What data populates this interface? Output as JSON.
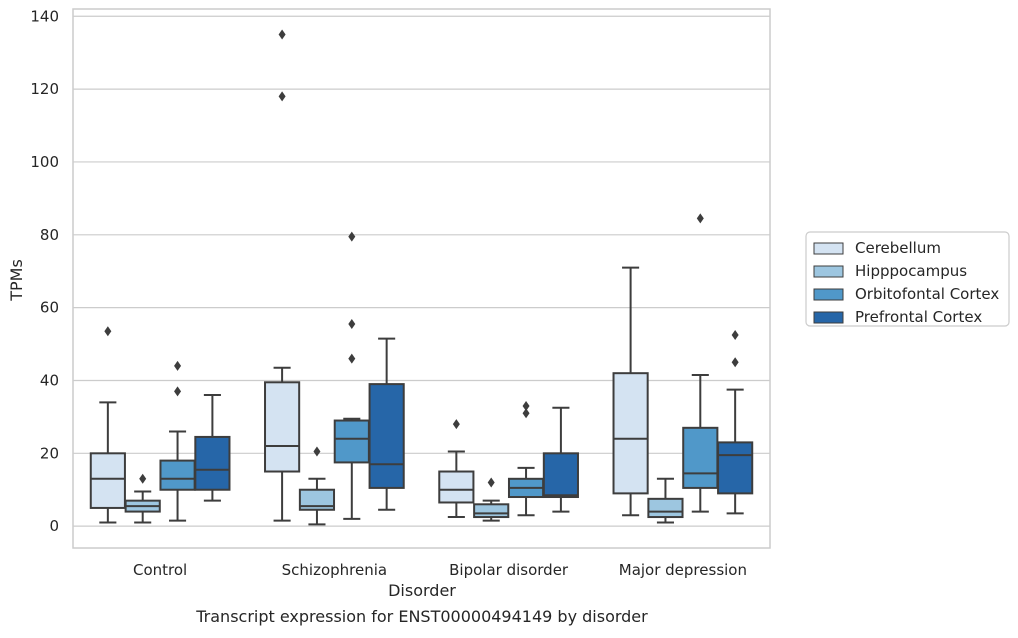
{
  "chart_data": {
    "type": "box",
    "title": "",
    "caption": "Transcript expression for ENST00000494149 by disorder",
    "xlabel": "Disorder",
    "ylabel": "TPMs",
    "ylim": [
      -6,
      142
    ],
    "yticks": [
      0,
      20,
      40,
      60,
      80,
      100,
      120,
      140
    ],
    "categories": [
      "Control",
      "Schizophrenia",
      "Bipolar disorder",
      "Major depression"
    ],
    "grid": "horizontal",
    "legend_position": "right",
    "series": [
      {
        "name": "Cerebellum",
        "color": "#d4e3f2",
        "boxes": [
          {
            "whislo": 1,
            "q1": 5,
            "med": 13,
            "q3": 20,
            "whishi": 34,
            "fliers": [
              53.5
            ]
          },
          {
            "whislo": 1.5,
            "q1": 15,
            "med": 22,
            "q3": 39.5,
            "whishi": 43.5,
            "fliers": [
              118,
              135
            ]
          },
          {
            "whislo": 2.5,
            "q1": 6.5,
            "med": 10,
            "q3": 15,
            "whishi": 20.5,
            "fliers": [
              28
            ]
          },
          {
            "whislo": 3,
            "q1": 9,
            "med": 24,
            "q3": 42,
            "whishi": 71,
            "fliers": []
          }
        ]
      },
      {
        "name": "Hipppocampus",
        "color": "#9dc6e0",
        "boxes": [
          {
            "whislo": 1,
            "q1": 4,
            "med": 5.5,
            "q3": 7,
            "whishi": 9.5,
            "fliers": [
              13
            ]
          },
          {
            "whislo": 0.5,
            "q1": 4.5,
            "med": 5.5,
            "q3": 10,
            "whishi": 13,
            "fliers": [
              20.5
            ]
          },
          {
            "whislo": 1.5,
            "q1": 2.5,
            "med": 3.5,
            "q3": 6,
            "whishi": 7,
            "fliers": [
              12
            ]
          },
          {
            "whislo": 1,
            "q1": 2.5,
            "med": 4,
            "q3": 7.5,
            "whishi": 13,
            "fliers": []
          }
        ]
      },
      {
        "name": "Orbitofontal Cortex",
        "color": "#5098c9",
        "boxes": [
          {
            "whislo": 1.5,
            "q1": 10,
            "med": 13,
            "q3": 18,
            "whishi": 26,
            "fliers": [
              37,
              44
            ]
          },
          {
            "whislo": 2,
            "q1": 17.5,
            "med": 24,
            "q3": 29,
            "whishi": 29.5,
            "fliers": [
              46,
              55.5,
              79.5
            ]
          },
          {
            "whislo": 3,
            "q1": 8,
            "med": 10.5,
            "q3": 13,
            "whishi": 16,
            "fliers": [
              31,
              33
            ]
          },
          {
            "whislo": 4,
            "q1": 10.5,
            "med": 14.5,
            "q3": 27,
            "whishi": 41.5,
            "fliers": [
              84.5
            ]
          }
        ]
      },
      {
        "name": "Prefrontal Cortex",
        "color": "#2666a8",
        "boxes": [
          {
            "whislo": 7,
            "q1": 10,
            "med": 15.5,
            "q3": 24.5,
            "whishi": 36,
            "fliers": []
          },
          {
            "whislo": 4.5,
            "q1": 10.5,
            "med": 17,
            "q3": 39,
            "whishi": 51.5,
            "fliers": []
          },
          {
            "whislo": 4,
            "q1": 8,
            "med": 8.5,
            "q3": 20,
            "whishi": 32.5,
            "fliers": []
          },
          {
            "whislo": 3.5,
            "q1": 9,
            "med": 19.5,
            "q3": 23,
            "whishi": 37.5,
            "fliers": [
              45,
              52.5
            ]
          }
        ]
      }
    ]
  }
}
